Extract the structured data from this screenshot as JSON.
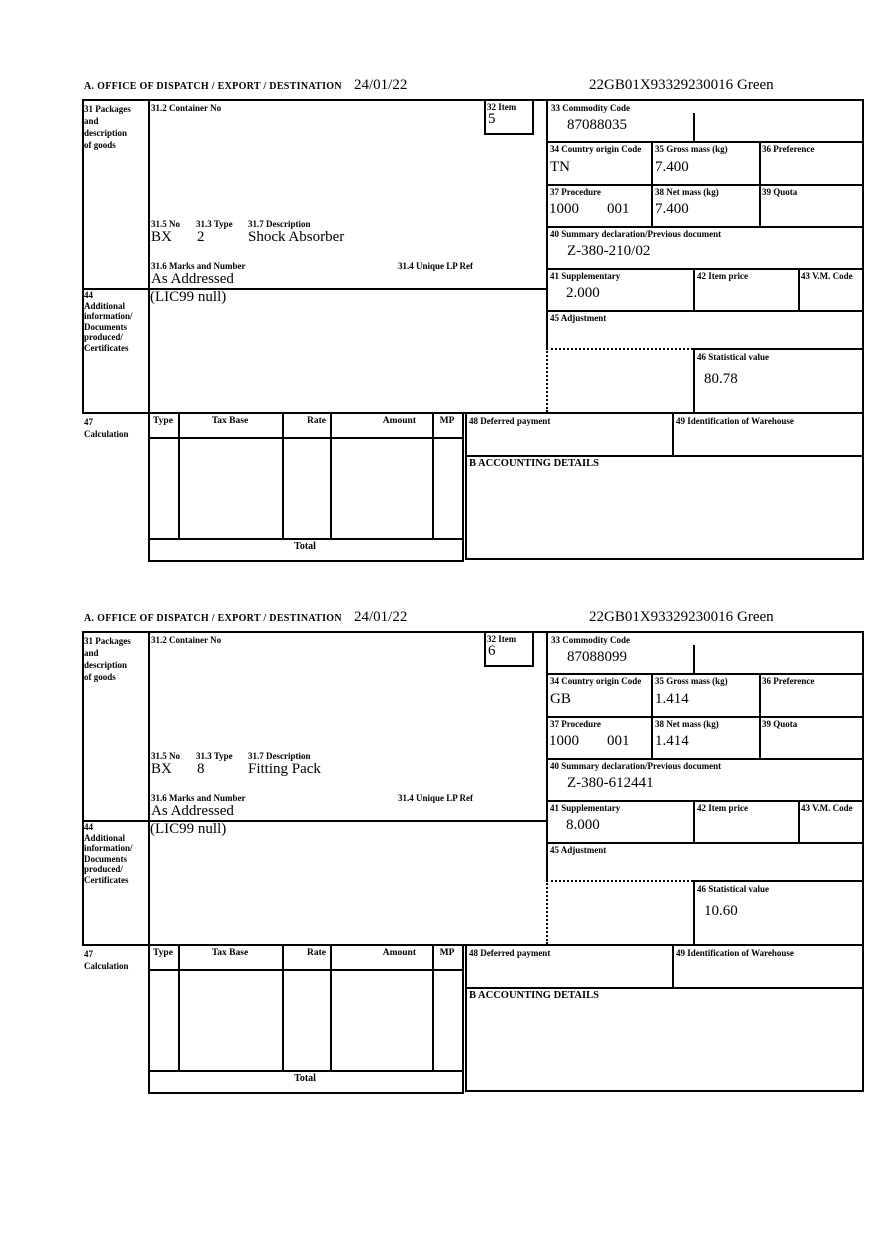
{
  "header": {
    "office": "A.  OFFICE OF DISPATCH / EXPORT / DESTINATION",
    "date": "24/01/22",
    "mrn": "22GB01X93329230016",
    "routing": "Green"
  },
  "labels": {
    "box31_side": "31 Packages\nand\ndescription\nof goods",
    "container": "31.2 Container No",
    "no": "31.5 No",
    "type": "31.3 Type",
    "description": "31.7 Description",
    "marks": "31.6 Marks and Number",
    "lp_ref": "31.4 Unique LP Ref",
    "item": "32 Item",
    "commodity": "33 Commodity Code",
    "origin": "34 Country origin Code",
    "gross": "35 Gross mass (kg)",
    "preference": "36 Preference",
    "procedure": "37 Procedure",
    "net": "38 Net mass (kg)",
    "quota": "39 Quota",
    "summary": "40 Summary declaration/Previous document",
    "supplementary": "41 Supplementary",
    "item_price": "42 Item price",
    "vm_code": "43 V.M. Code",
    "box44_side": "44\nAdditional\ninformation/\nDocuments\nproduced/\nCertificates",
    "adjustment": "45 Adjustment",
    "statistical": "46 Statistical value",
    "box47_side": "47\nCalculation",
    "col_type": "Type",
    "col_tax_base": "Tax Base",
    "col_rate": "Rate",
    "col_amount": "Amount",
    "col_mp": "MP",
    "total": "Total",
    "deferred": "48 Deferred payment",
    "warehouse": "49 Identification of Warehouse",
    "accounting": "B ACCOUNTING DETAILS"
  },
  "sections": [
    {
      "item_no": "5",
      "commodity_code": "87088035",
      "origin_code": "TN",
      "gross_mass": "7.400",
      "procedure_a": "1000",
      "procedure_b": "001",
      "net_mass": "7.400",
      "previous_document": "Z-380-210/02",
      "supplementary_units": "2.000",
      "package_kind": "BX",
      "package_count": "2",
      "goods_description": "Shock Absorber",
      "marks_value": "As Addressed",
      "additional_information": "(LIC99 null)",
      "statistical_value": "80.78"
    },
    {
      "item_no": "6",
      "commodity_code": "87088099",
      "origin_code": "GB",
      "gross_mass": "1.414",
      "procedure_a": "1000",
      "procedure_b": "001",
      "net_mass": "1.414",
      "previous_document": "Z-380-612441",
      "supplementary_units": "8.000",
      "package_kind": "BX",
      "package_count": "8",
      "goods_description": "Fitting Pack",
      "marks_value": "As Addressed",
      "additional_information": "(LIC99 null)",
      "statistical_value": "10.60"
    }
  ]
}
